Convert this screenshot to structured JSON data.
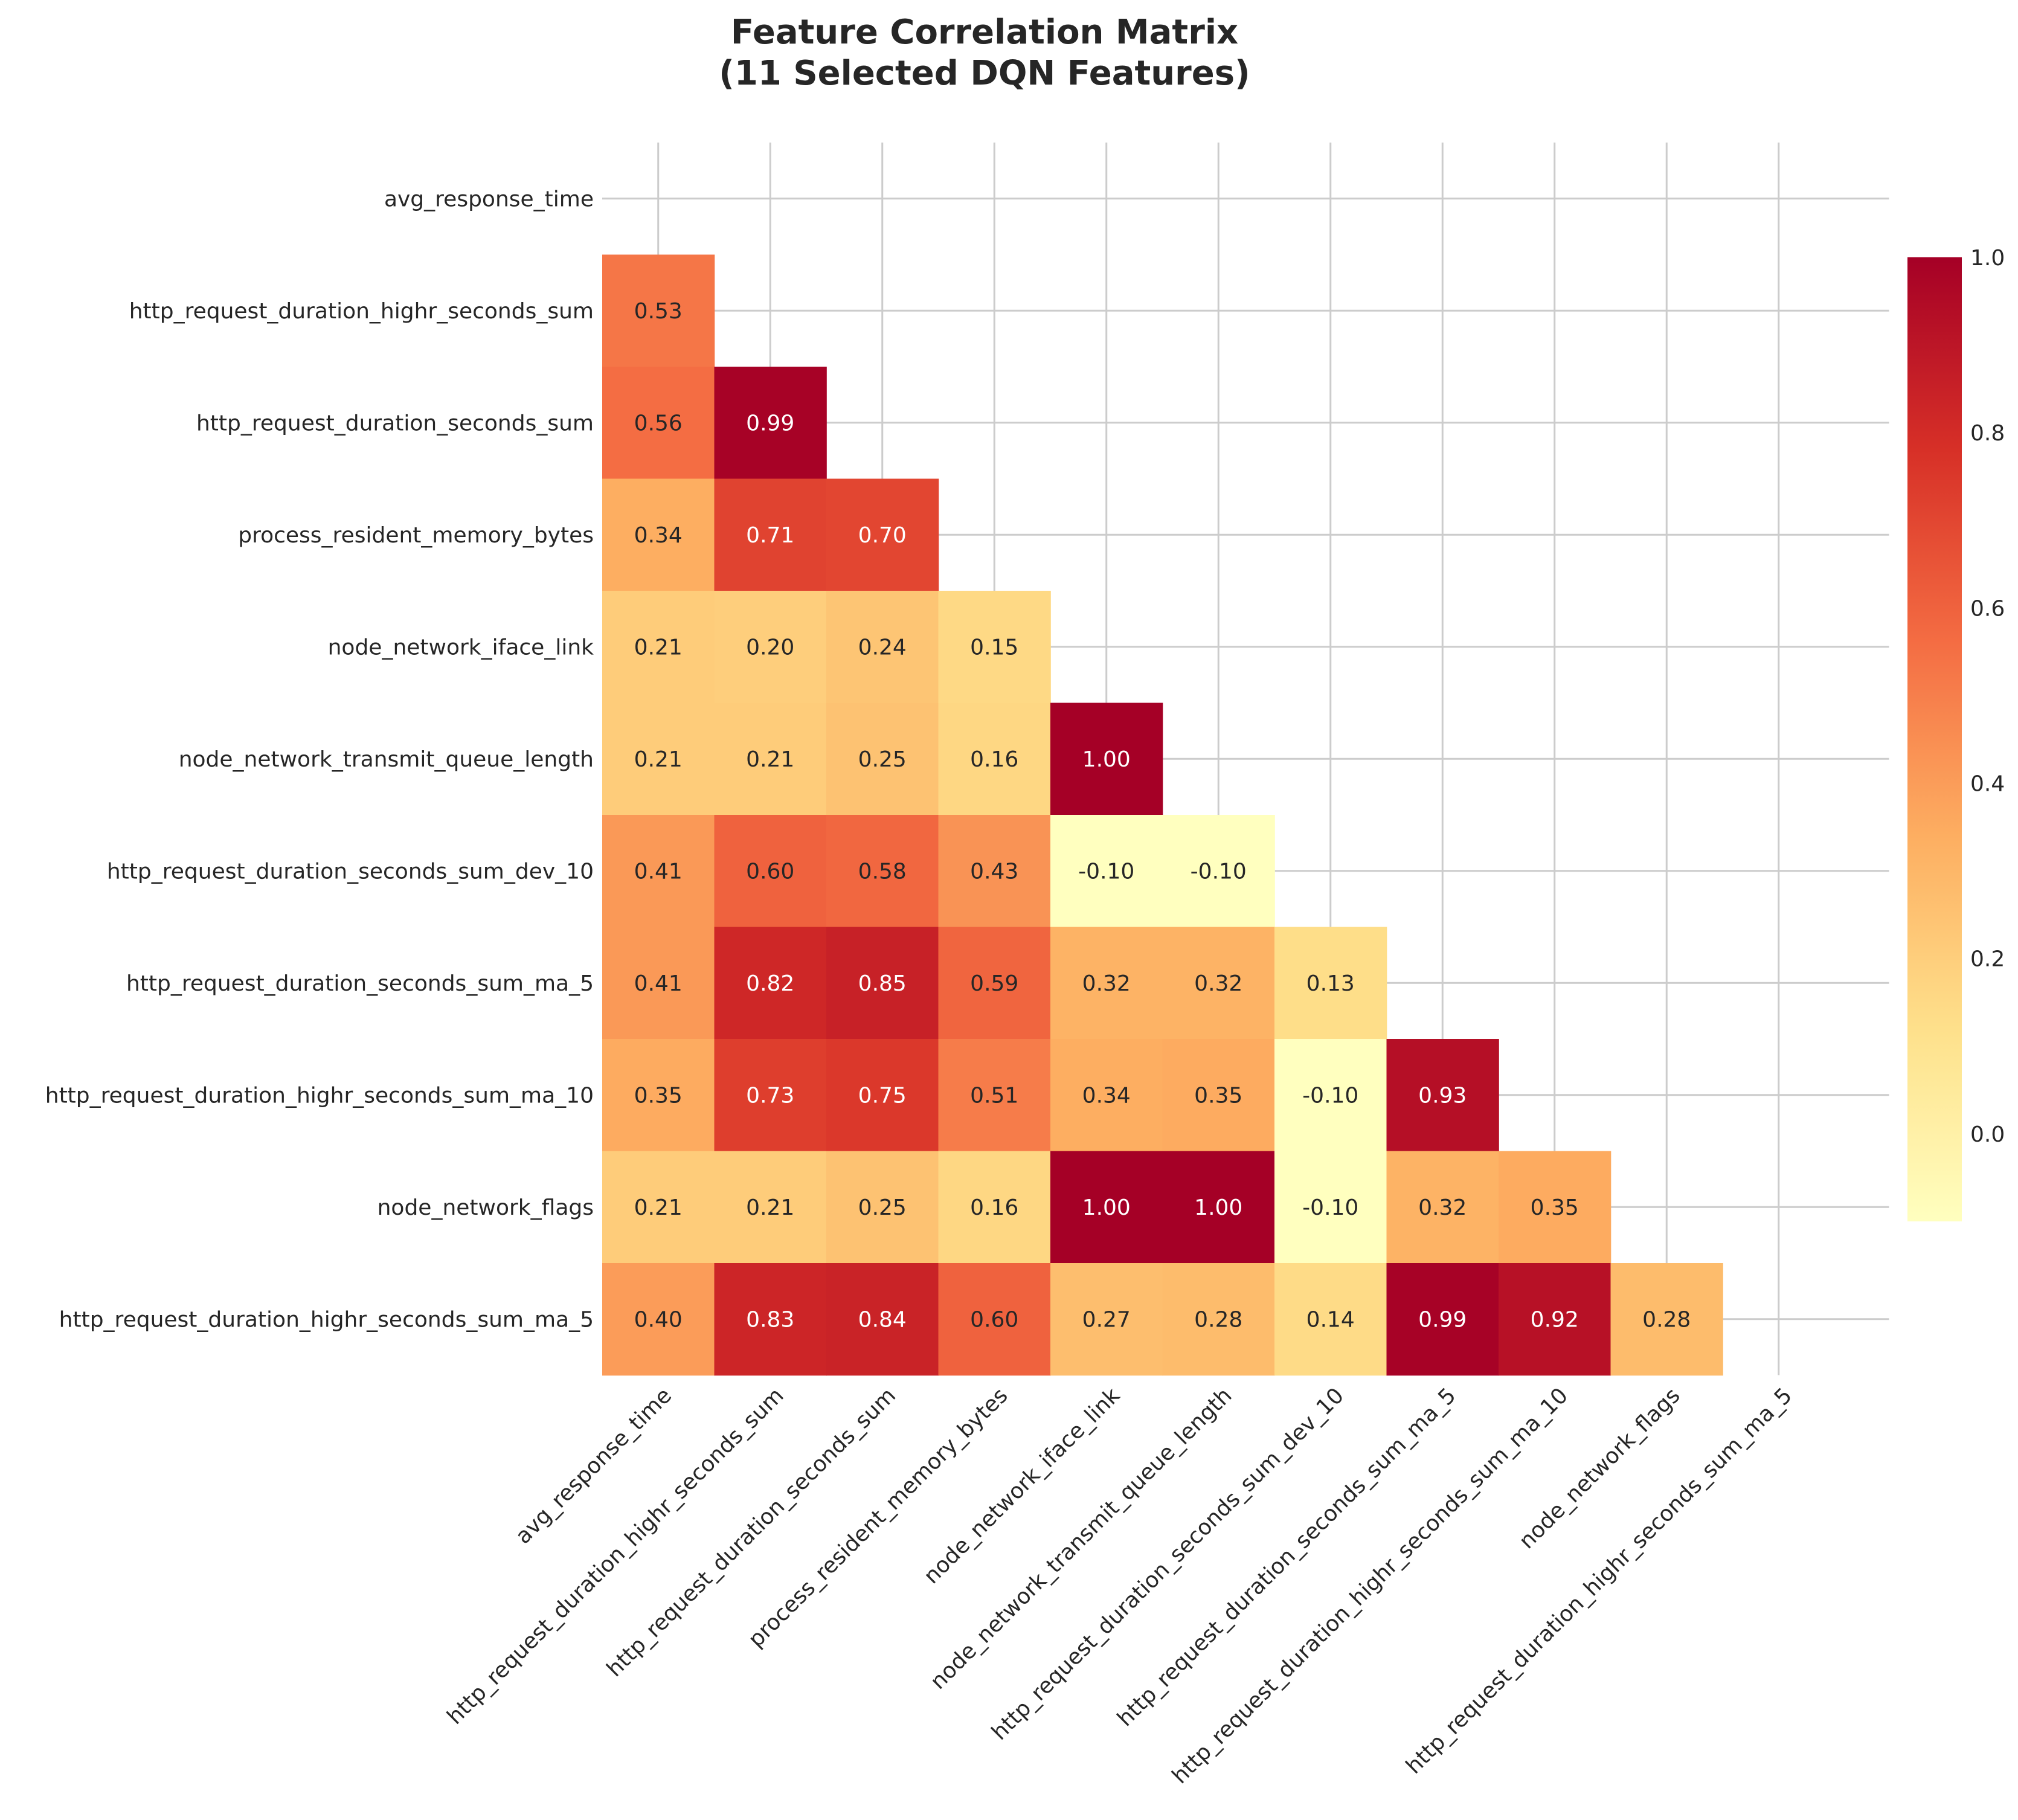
{
  "chart_data": {
    "type": "heatmap",
    "title": [
      "Feature Correlation Matrix",
      "(11 Selected DQN Features)"
    ],
    "labels": [
      "avg_response_time",
      "http_request_duration_highr_seconds_sum",
      "http_request_duration_seconds_sum",
      "process_resident_memory_bytes",
      "node_network_iface_link",
      "node_network_transmit_queue_length",
      "http_request_duration_seconds_sum_dev_10",
      "http_request_duration_seconds_sum_ma_5",
      "http_request_duration_highr_seconds_sum_ma_10",
      "node_network_flags",
      "http_request_duration_highr_seconds_sum_ma_5"
    ],
    "mask": "upper-triangle-and-diagonal",
    "lower_triangle": [
      [],
      [
        0.53
      ],
      [
        0.56,
        0.99
      ],
      [
        0.34,
        0.71,
        0.7
      ],
      [
        0.21,
        0.2,
        0.24,
        0.15
      ],
      [
        0.21,
        0.21,
        0.25,
        0.16,
        1.0
      ],
      [
        0.41,
        0.6,
        0.58,
        0.43,
        -0.1,
        -0.1
      ],
      [
        0.41,
        0.82,
        0.85,
        0.59,
        0.32,
        0.32,
        0.13
      ],
      [
        0.35,
        0.73,
        0.75,
        0.51,
        0.34,
        0.35,
        -0.1,
        0.93
      ],
      [
        0.21,
        0.21,
        0.25,
        0.16,
        1.0,
        1.0,
        -0.1,
        0.32,
        0.35
      ],
      [
        0.4,
        0.83,
        0.84,
        0.6,
        0.27,
        0.28,
        0.14,
        0.99,
        0.92,
        0.28
      ]
    ],
    "value_format": "2 decimals",
    "colormap": "RdYlGn_r",
    "colorbar": {
      "vmin": -0.1,
      "vmax": 1.0,
      "ticks": [
        "0.0",
        "0.2",
        "0.4",
        "0.6",
        "0.8",
        "1.0"
      ],
      "tick_values": [
        0.0,
        0.2,
        0.4,
        0.6,
        0.8,
        1.0
      ],
      "placement": "right"
    },
    "grid": true,
    "x_tick_rotation": 45
  },
  "colors": {
    "grid": "#cccccc",
    "text_dark": "#262626",
    "text_light": "#ffffff"
  }
}
